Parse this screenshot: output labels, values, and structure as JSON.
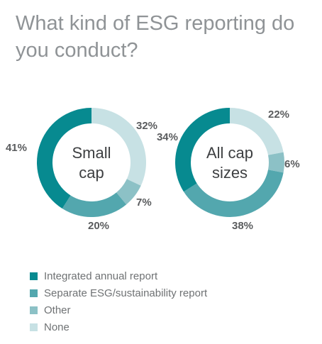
{
  "title": "What kind of ESG reporting do you conduct?",
  "colors": {
    "integrated": "#078a90",
    "separate": "#53a7ae",
    "other": "#8cc1c6",
    "none": "#c7e1e4",
    "label_text": "#5a5c5e",
    "center_text": "#3d3f41"
  },
  "chart_data": [
    {
      "type": "pie",
      "center_label": [
        "Small",
        "cap"
      ],
      "categories": [
        "Integrated annual report",
        "Separate ESG/sustainability report",
        "Other",
        "None"
      ],
      "values": [
        41,
        20,
        7,
        32
      ],
      "labels": [
        "41%",
        "20%",
        "7%",
        "32%"
      ]
    },
    {
      "type": "pie",
      "center_label": [
        "All cap",
        "sizes"
      ],
      "categories": [
        "Integrated annual report",
        "Separate ESG/sustainability report",
        "Other",
        "None"
      ],
      "values": [
        34,
        38,
        6,
        22
      ],
      "labels": [
        "34%",
        "38%",
        "6%",
        "22%"
      ]
    }
  ],
  "legend": [
    {
      "label": "Integrated annual report",
      "color": "#078a90"
    },
    {
      "label": "Separate ESG/sustainability report",
      "color": "#53a7ae"
    },
    {
      "label": "Other",
      "color": "#8cc1c6"
    },
    {
      "label": "None",
      "color": "#c7e1e4"
    }
  ]
}
